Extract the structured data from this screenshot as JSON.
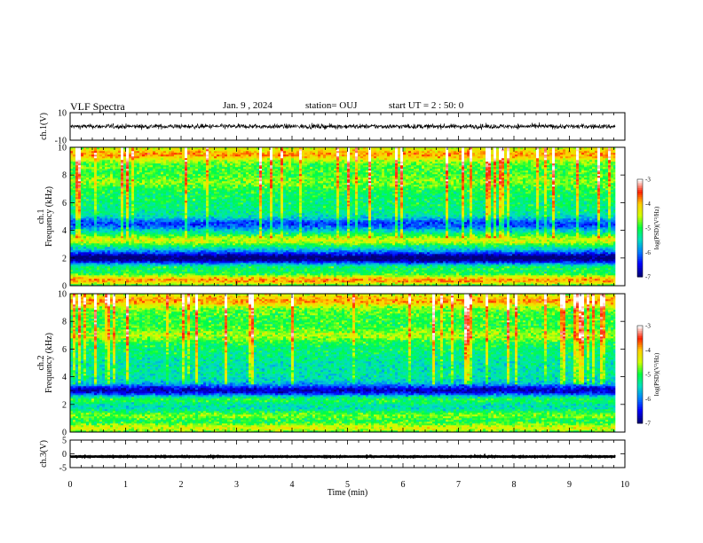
{
  "header": {
    "title": "VLF Spectra",
    "date": "Jan. 9 , 2024",
    "station": "station= OUJ",
    "start": "start  UT =  2 : 50: 0"
  },
  "colors": {
    "spectrogram_scale": [
      "#00007a",
      "#0000ff",
      "#0080ff",
      "#00e0c0",
      "#00ff40",
      "#d0ff00",
      "#ffd000",
      "#ff2000",
      "#ffffff"
    ]
  },
  "chart_data": [
    {
      "type": "line",
      "name": "ch1-waveform",
      "ylabel": "ch.1(V)",
      "ylim": [
        -10,
        10
      ],
      "yticks": [
        "10",
        "-10"
      ],
      "trace_level": 0,
      "trace_amplitude": 2.5
    },
    {
      "type": "heatmap",
      "name": "ch1-spectrogram",
      "ylabel": "ch.1 Frequency (kHz)",
      "ylim": [
        0,
        10
      ],
      "yticks": [
        "0",
        "2",
        "4",
        "6",
        "8",
        "10"
      ],
      "colorbar": {
        "label": "log(PSD)(V²/Hz)",
        "range": [
          -7,
          -3
        ],
        "ticks": [
          "-3",
          "-4",
          "-5",
          "-6",
          "-7"
        ]
      },
      "bands": [
        {
          "f": 0.4,
          "level": -3.3
        },
        {
          "f": 1.3,
          "level": -4.6
        },
        {
          "f": 2.0,
          "level": -6.8
        },
        {
          "f": 3.3,
          "level": -4.2
        },
        {
          "f": 4.5,
          "level": -6.2
        },
        {
          "f": 7.5,
          "level": -5.0
        },
        {
          "f": 9.5,
          "level": -4.4
        }
      ]
    },
    {
      "type": "heatmap",
      "name": "ch2-spectrogram",
      "ylabel": "ch.2 Frequency (kHz)",
      "ylim": [
        0,
        10
      ],
      "yticks": [
        "0",
        "2",
        "4",
        "6",
        "8",
        "10"
      ],
      "colorbar": {
        "label": "log(PSD)(V²/Hz)",
        "range": [
          -7,
          -3
        ],
        "ticks": [
          "-3",
          "-4",
          "-5",
          "-6",
          "-7"
        ]
      },
      "bands": [
        {
          "f": 0.3,
          "level": -3.8
        },
        {
          "f": 1.2,
          "level": -4.3
        },
        {
          "f": 2.4,
          "level": -4.6
        },
        {
          "f": 3.0,
          "level": -6.6
        },
        {
          "f": 5.0,
          "level": -5.4
        },
        {
          "f": 7.0,
          "level": -4.8
        },
        {
          "f": 9.5,
          "level": -4.4
        }
      ]
    },
    {
      "type": "line",
      "name": "ch3-waveform",
      "ylabel": "ch.3(V)",
      "ylim": [
        -5,
        5
      ],
      "yticks": [
        "5",
        "0",
        "-5"
      ],
      "trace_level": -1,
      "trace_amplitude": 0.15
    }
  ],
  "time_axis": {
    "xlabel": "Time (min)",
    "xlim": [
      0,
      10
    ],
    "ticks": [
      "0",
      "1",
      "2",
      "3",
      "4",
      "5",
      "6",
      "7",
      "8",
      "9",
      "10"
    ],
    "data_end": 9.83
  }
}
